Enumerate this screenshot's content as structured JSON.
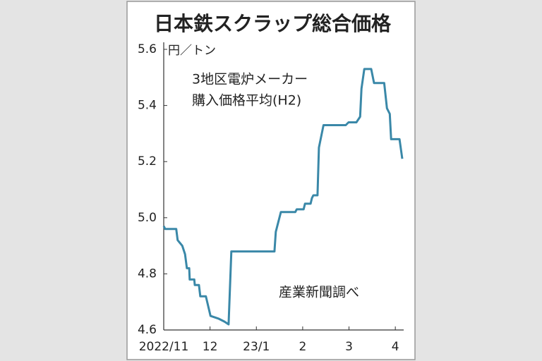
{
  "chart_data": {
    "type": "line",
    "title": "日本鉄スクラップ総合価格",
    "y_unit": "円／トン",
    "annotations": [
      "3地区電炉メーカー",
      "購入価格平均(H2)",
      "産業新聞調べ"
    ],
    "x": [
      0,
      0.03,
      0.27,
      0.3,
      0.4,
      0.46,
      0.5,
      0.55,
      0.56,
      0.66,
      0.67,
      0.76,
      0.79,
      0.91,
      1.01,
      1.19,
      1.31,
      1.4,
      1.46,
      2.39,
      2.42,
      2.53,
      2.84,
      2.87,
      3.02,
      3.05,
      3.17,
      3.2,
      3.23,
      3.32,
      3.35,
      3.45,
      3.93,
      3.99,
      4.16,
      4.24,
      4.27,
      4.33,
      4.48,
      4.54,
      4.76,
      4.82,
      4.88,
      4.91,
      5.09,
      5.15
    ],
    "values": [
      4.97,
      4.96,
      4.96,
      4.92,
      4.9,
      4.87,
      4.82,
      4.82,
      4.78,
      4.78,
      4.76,
      4.76,
      4.72,
      4.72,
      4.65,
      4.64,
      4.63,
      4.62,
      4.88,
      4.88,
      4.95,
      5.02,
      5.02,
      5.03,
      5.03,
      5.05,
      5.05,
      5.07,
      5.08,
      5.08,
      5.25,
      5.33,
      5.33,
      5.34,
      5.34,
      5.36,
      5.46,
      5.53,
      5.53,
      5.48,
      5.48,
      5.39,
      5.37,
      5.28,
      5.28,
      5.21
    ],
    "color": "#3a88a8",
    "xlim": [
      0,
      5.15
    ],
    "xticks": [
      {
        "value": 0,
        "label": "2022/11"
      },
      {
        "value": 1,
        "label": "12"
      },
      {
        "value": 2,
        "label": "23/1"
      },
      {
        "value": 3,
        "label": "2"
      },
      {
        "value": 4,
        "label": "3"
      },
      {
        "value": 5,
        "label": "4"
      }
    ],
    "ylim": [
      4.6,
      5.6
    ],
    "yticks": [
      4.6,
      4.8,
      {
        "value": 5,
        "label": "5.0"
      },
      5.2,
      5.4,
      5.6
    ],
    "grid": false
  }
}
